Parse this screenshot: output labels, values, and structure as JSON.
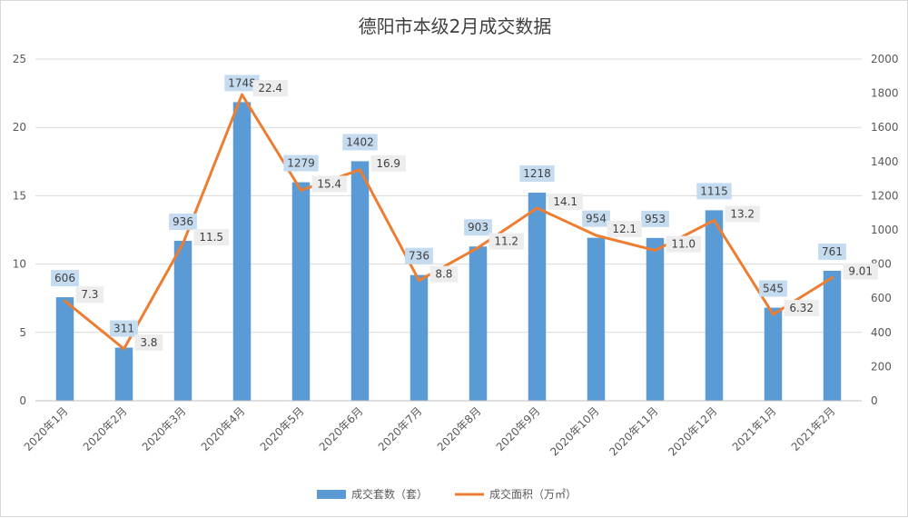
{
  "title": "德阳市本级2月成交数据",
  "chart_data": {
    "type": "bar",
    "categories": [
      "2020年1月",
      "2020年2月",
      "2020年3月",
      "2020年4月",
      "2020年5月",
      "2020年6月",
      "2020年7月",
      "2020年8月",
      "2020年9月",
      "2020年10月",
      "2020年11月",
      "2020年12月",
      "2021年1月",
      "2021年2月"
    ],
    "series": [
      {
        "name": "成交套数（套）",
        "type": "bar",
        "axis": "right",
        "color": "#5b9bd5",
        "values": [
          606,
          311,
          936,
          1748,
          1279,
          1402,
          736,
          903,
          1218,
          954,
          953,
          1115,
          545,
          761
        ],
        "labels": [
          "606",
          "311",
          "936",
          "1748",
          "1279",
          "1402",
          "736",
          "903",
          "1218",
          "954",
          "953",
          "1115",
          "545",
          "761"
        ]
      },
      {
        "name": "成交面积（万㎡）",
        "type": "line",
        "axis": "left",
        "color": "#ed7d31",
        "values": [
          7.3,
          3.8,
          11.5,
          22.4,
          15.4,
          16.9,
          8.8,
          11.2,
          14.1,
          12.1,
          11.0,
          13.2,
          6.32,
          9.01
        ],
        "labels": [
          "7.3",
          "3.8",
          "11.5",
          "22.4",
          "15.4",
          "16.9",
          "8.8",
          "11.2",
          "14.1",
          "12.1",
          "11.0",
          "13.2",
          "6.32",
          "9.01"
        ]
      }
    ],
    "y_left": {
      "min": 0,
      "max": 25,
      "ticks": [
        "0",
        "5",
        "10",
        "15",
        "20",
        "25"
      ]
    },
    "y_right": {
      "min": 0,
      "max": 2000,
      "ticks": [
        "0",
        "200",
        "400",
        "600",
        "800",
        "1000",
        "1200",
        "1400",
        "1600",
        "1800",
        "2000"
      ]
    },
    "legend_position": "bottom",
    "grid": true
  }
}
